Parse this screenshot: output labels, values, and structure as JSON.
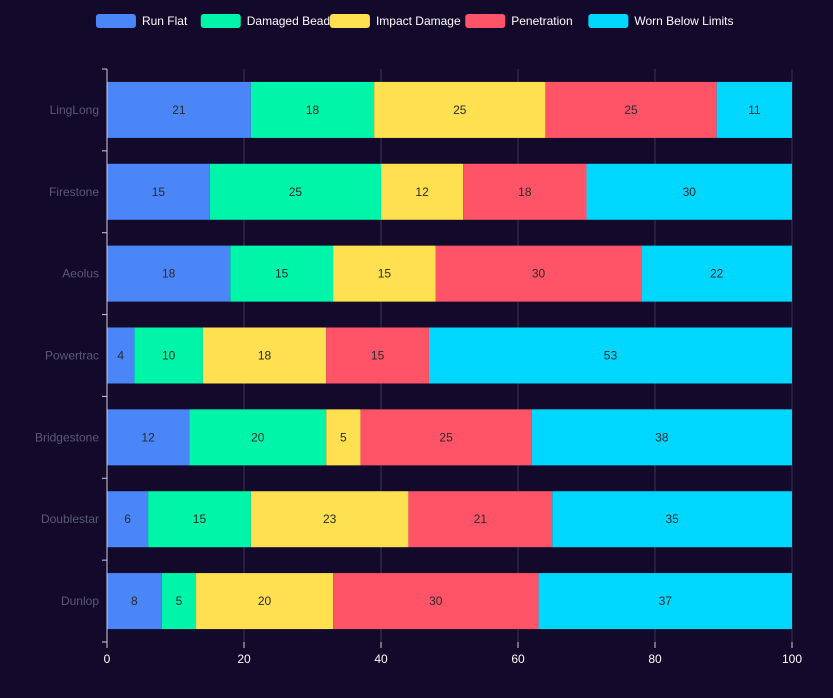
{
  "chart_data": {
    "type": "bar",
    "orientation": "horizontal",
    "stacked": true,
    "categories": [
      "LingLong",
      "Firestone",
      "Aeolus",
      "Powertrac",
      "Bridgestone",
      "Doublestar",
      "Dunlop"
    ],
    "series": [
      {
        "name": "Run Flat",
        "color": "#4a86f7",
        "values": [
          21,
          15,
          18,
          4,
          12,
          6,
          8
        ]
      },
      {
        "name": "Damaged Bead",
        "color": "#00f5a8",
        "values": [
          18,
          25,
          15,
          10,
          20,
          15,
          5
        ]
      },
      {
        "name": "Impact Damage",
        "color": "#ffe050",
        "values": [
          25,
          12,
          15,
          18,
          5,
          23,
          20
        ]
      },
      {
        "name": "Penetration",
        "color": "#ff5468",
        "values": [
          25,
          18,
          30,
          15,
          25,
          21,
          30
        ]
      },
      {
        "name": "Worn Below Limits",
        "color": "#00d7ff",
        "values": [
          11,
          30,
          22,
          53,
          38,
          35,
          37
        ]
      }
    ],
    "x_ticks": [
      "0",
      "20",
      "40",
      "60",
      "80",
      "100"
    ],
    "xlim": [
      0,
      100
    ],
    "grid": true,
    "legend_position": "top"
  }
}
